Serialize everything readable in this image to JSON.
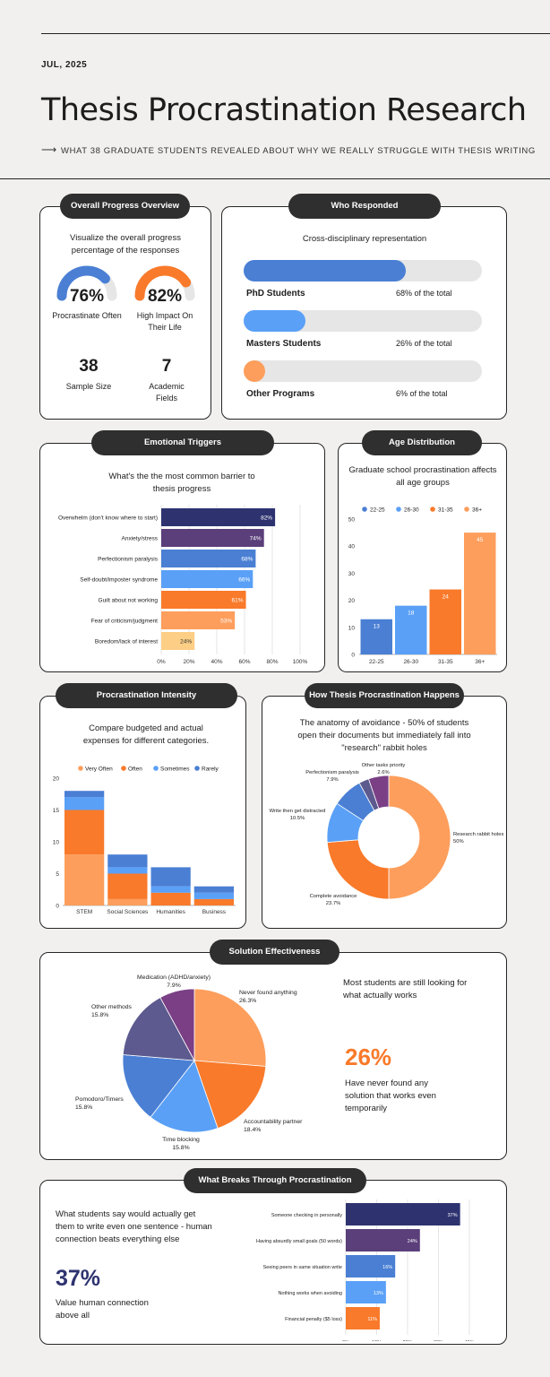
{
  "header": {
    "date": "JUL, 2025",
    "title": "Thesis Procrastination Research",
    "subtitle": "WHAT 38 GRADUATE STUDENTS REVEALED ABOUT WHY WE REALLY STRUGGLE WITH THESIS WRITING"
  },
  "colors": {
    "navy": "#2e3370",
    "purple": "#5a3f7a",
    "blue": "#4a7fd4",
    "lightblue": "#5aa0f7",
    "orange": "#f97a2a",
    "lightorange": "#fd9e5c",
    "yellow": "#fdcf86",
    "gray": "#e6e6e6"
  },
  "progress": {
    "header": "Overall Progress Overview",
    "description": "Visualize the overall progress percentage of the responses",
    "gauges": [
      {
        "value": "76%",
        "label": "Procrastinate Often",
        "pct": 76,
        "color": "#4a7fd4"
      },
      {
        "value": "82%",
        "label": "High Impact On Their Life",
        "pct": 82,
        "color": "#f97a2a"
      }
    ],
    "stats": [
      {
        "value": "38",
        "label": "Sample Size"
      },
      {
        "value": "7",
        "label": "Academic Fields"
      }
    ]
  },
  "respondents": {
    "header": "Who Responded",
    "description": "Cross-disciplinary representation",
    "rows": [
      {
        "label": "PhD Students",
        "value": "68% of the total",
        "pct": 68,
        "color": "#4a7fd4"
      },
      {
        "label": "Masters Students",
        "value": "26% of the total",
        "pct": 26,
        "color": "#5aa0f7"
      },
      {
        "label": "Other Programs",
        "value": "6% of the total",
        "pct": 6,
        "color": "#fd9e5c"
      }
    ]
  },
  "triggers": {
    "header": "Emotional Triggers",
    "description": "What's the the most common barrier to thesis progress"
  },
  "ages": {
    "header": "Age Distribution",
    "description": "Graduate school procrastination affects all age groups"
  },
  "intensity": {
    "header": "Procrastination Intensity",
    "description": "Compare budgeted and actual expenses for different categories."
  },
  "howit": {
    "header": "How Thesis Procrastination Happens",
    "description": "The anatomy of avoidance - 50% of students open their documents but immediately fall into \"research\" rabbit holes"
  },
  "solutions": {
    "header": "Solution Effectiveness",
    "note": "Most students are still looking for what actually works",
    "stat": "26%",
    "stat_label": "Have never found any solution that works even temporarily"
  },
  "breaks": {
    "header": "What Breaks Through Procrastination",
    "description": "What students say would actually get them to write even one sentence - human connection beats everything else",
    "stat": "37%",
    "stat_label": "Value human connection above all"
  },
  "chart_data": [
    {
      "id": "triggers",
      "type": "bar",
      "orientation": "horizontal",
      "categories": [
        "Overwhelm (don't know where to start)",
        "Anxiety/stress",
        "Perfectionism paralysis",
        "Self-doubt/imposter syndrome",
        "Guilt about not working",
        "Fear of criticism/judgment",
        "Boredom/lack of interest"
      ],
      "values": [
        82,
        74,
        68,
        66,
        61,
        53,
        24
      ],
      "labels": [
        "82%",
        "74%",
        "68%",
        "66%",
        "61%",
        "53%",
        "24%"
      ],
      "colors": [
        "#2e3370",
        "#5a3f7a",
        "#4a7fd4",
        "#5aa0f7",
        "#f97a2a",
        "#fd9e5c",
        "#fdcf86"
      ],
      "xlim": [
        0,
        100
      ],
      "xticks": [
        "0%",
        "20%",
        "40%",
        "60%",
        "80%",
        "100%"
      ],
      "grid": true
    },
    {
      "id": "ages",
      "type": "bar",
      "categories": [
        "22-25",
        "26-30",
        "31-35",
        "36+"
      ],
      "values": [
        13,
        18,
        24,
        45
      ],
      "colors": [
        "#4a7fd4",
        "#5aa0f7",
        "#f97a2a",
        "#fd9e5c"
      ],
      "legend": [
        "22-25",
        "26-30",
        "31-35",
        "36+"
      ],
      "ylim": [
        0,
        50
      ],
      "yticks": [
        0,
        10,
        20,
        30,
        40,
        50
      ],
      "legend_position": "top"
    },
    {
      "id": "intensity",
      "type": "bar",
      "stacked": true,
      "categories": [
        "STEM",
        "Social Sciences",
        "Humanities",
        "Business"
      ],
      "series": [
        {
          "name": "Very Often",
          "values": [
            8,
            1,
            0,
            0
          ],
          "color": "#fd9e5c"
        },
        {
          "name": "Often",
          "values": [
            7,
            4,
            2,
            1
          ],
          "color": "#f97a2a"
        },
        {
          "name": "Sometimes",
          "values": [
            2,
            1,
            1,
            1
          ],
          "color": "#5aa0f7"
        },
        {
          "name": "Rarely",
          "values": [
            1,
            2,
            3,
            1
          ],
          "color": "#4a7fd4"
        }
      ],
      "ylim": [
        0,
        20
      ],
      "yticks": [
        0,
        5,
        10,
        15,
        20
      ],
      "legend_position": "top"
    },
    {
      "id": "howit",
      "type": "pie",
      "donut": true,
      "slices": [
        {
          "label": "Research rabbit holes",
          "pct": "50%",
          "value": 50,
          "color": "#fd9e5c"
        },
        {
          "label": "Complete avoidance",
          "pct": "23.7%",
          "value": 23.7,
          "color": "#f97a2a"
        },
        {
          "label": "Write then get distracted",
          "pct": "10.5%",
          "value": 10.5,
          "color": "#5aa0f7"
        },
        {
          "label": "Perfectionism paralysis",
          "pct": "7.9%",
          "value": 7.9,
          "color": "#4a7fd4"
        },
        {
          "label": "Other tasks priority",
          "pct": "2.6%",
          "value": 2.6,
          "color": "#5d5a8f"
        },
        {
          "label": "",
          "pct": "",
          "value": 5.3,
          "color": "#7a3f85"
        }
      ]
    },
    {
      "id": "solutions",
      "type": "pie",
      "slices": [
        {
          "label": "Never found anything",
          "pct": "26.3%",
          "value": 26.3,
          "color": "#fd9e5c"
        },
        {
          "label": "Accountability partner",
          "pct": "18.4%",
          "value": 18.4,
          "color": "#f97a2a"
        },
        {
          "label": "Time blocking",
          "pct": "15.8%",
          "value": 15.8,
          "color": "#5aa0f7"
        },
        {
          "label": "Pomodoro/Timers",
          "pct": "15.8%",
          "value": 15.8,
          "color": "#4a7fd4"
        },
        {
          "label": "Other methods",
          "pct": "15.8%",
          "value": 15.8,
          "color": "#5d5a8f"
        },
        {
          "label": "Medication (ADHD/anxiety)",
          "pct": "7.9%",
          "value": 7.9,
          "color": "#7a3f85"
        }
      ]
    },
    {
      "id": "breaks",
      "type": "bar",
      "orientation": "horizontal",
      "categories": [
        "Someone checking in personally",
        "Having absurdly small goals (50 words)",
        "Seeing peers in same situation write",
        "Nothing works when avoiding",
        "Financial penalty ($5 loss)"
      ],
      "values": [
        37,
        24,
        16,
        13,
        11
      ],
      "labels": [
        "37%",
        "24%",
        "16%",
        "13%",
        "11%"
      ],
      "colors": [
        "#2e3370",
        "#5a3f7a",
        "#4a7fd4",
        "#5aa0f7",
        "#f97a2a"
      ],
      "xlim": [
        0,
        40
      ],
      "xticks": [
        "0%",
        "10%",
        "20%",
        "30%",
        "40%"
      ],
      "grid": true
    }
  ]
}
